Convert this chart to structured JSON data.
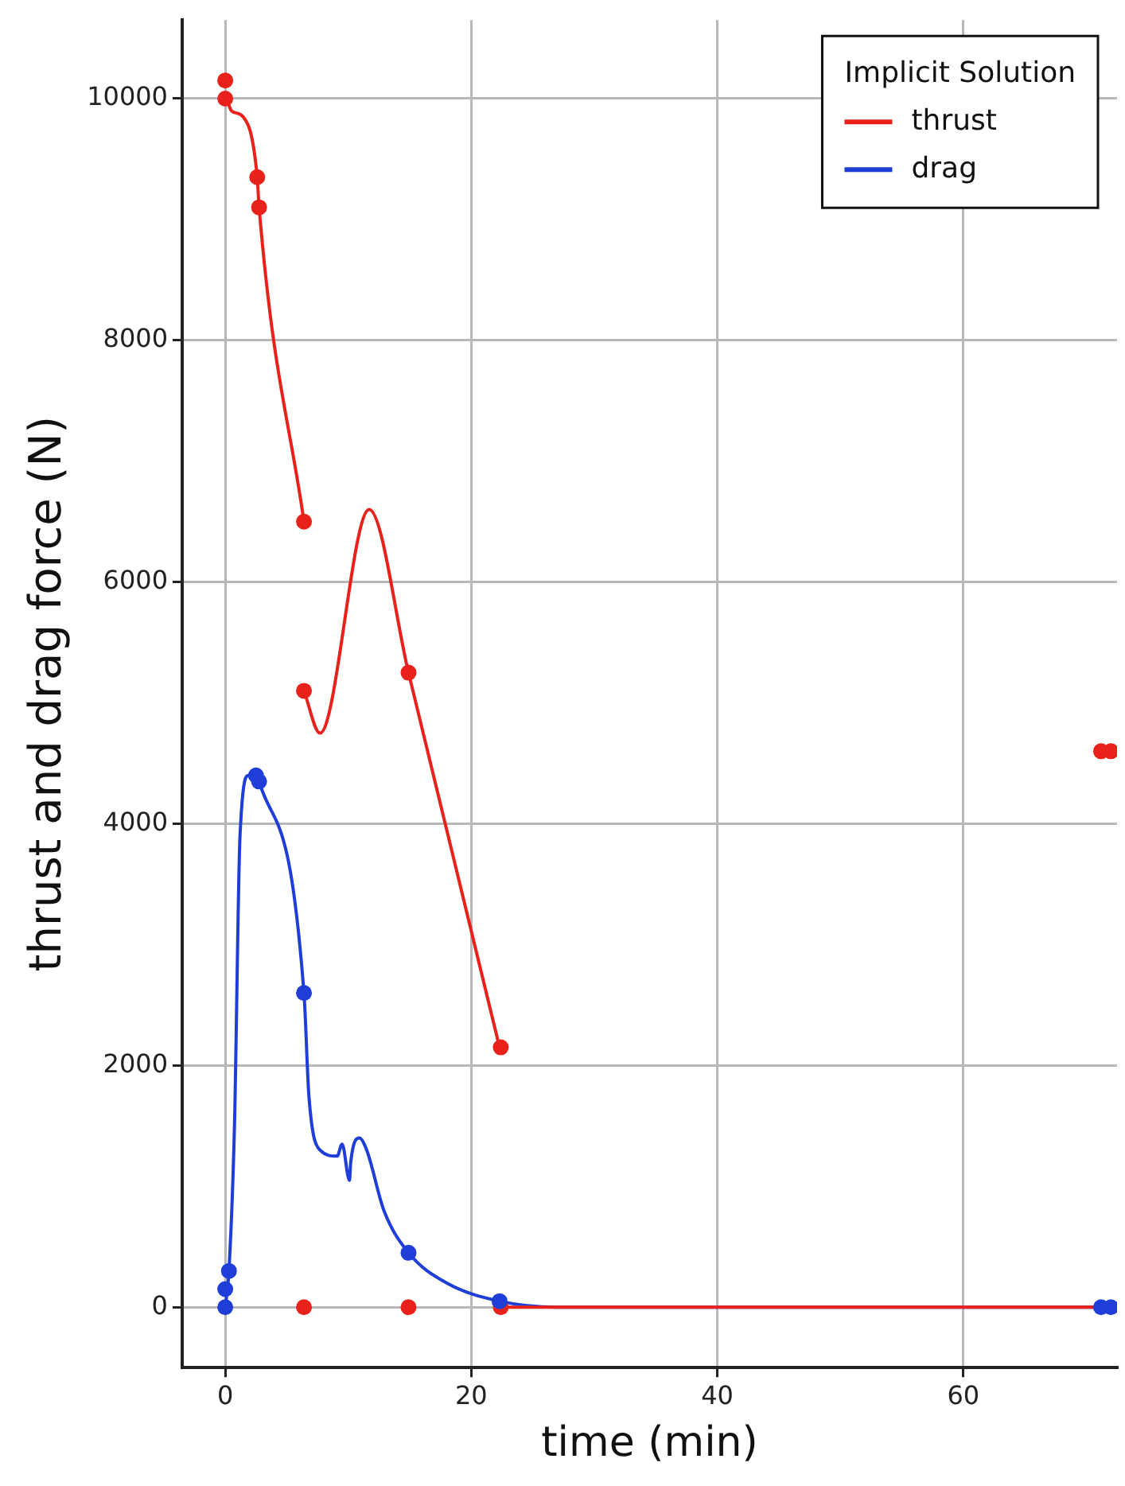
{
  "chart_data": {
    "type": "line",
    "xlabel": "time (min)",
    "ylabel": "thrust and drag force (N)",
    "legend_title": "Implicit Solution",
    "legend": "top right",
    "grid": true,
    "xlim": [
      -3.5,
      72.5
    ],
    "xticks": [
      0,
      20,
      40,
      60
    ],
    "ylim": [
      -500,
      10650
    ],
    "yticks": [
      0,
      2000,
      4000,
      6000,
      8000,
      10000
    ],
    "series": [
      {
        "name": "thrust",
        "type": "line",
        "marker": "none",
        "color": "#e8221b",
        "x": [
          0,
          0.5,
          1.45,
          2.6,
          2.75,
          6.4,
          null,
          6.4,
          7.7,
          11.7,
          14.9,
          22.3,
          null,
          22.4,
          72.5
        ],
        "values": [
          10050,
          9900,
          9850,
          9350,
          9100,
          6500,
          null,
          5100,
          4750,
          6600,
          5250,
          2150,
          null,
          0,
          0
        ]
      },
      {
        "name": "drag",
        "type": "line",
        "marker": "none",
        "color": "#1f3ed8",
        "x": [
          0,
          0.3,
          0.75,
          1.2,
          1.9,
          2.5,
          2.75,
          6.4,
          6.8,
          7.7,
          9.1,
          9.5,
          10.1,
          10.2,
          10.9,
          11.5,
          12.9,
          14.9,
          18,
          22.3,
          27,
          72.5
        ],
        "values": [
          0,
          300,
          1500,
          3900,
          4400,
          4400,
          4350,
          2600,
          1750,
          1300,
          1250,
          1350,
          1050,
          1200,
          1400,
          1300,
          800,
          450,
          200,
          50,
          0,
          0
        ]
      },
      {
        "type": "scatter",
        "marker": "circle",
        "color": "#e8221b",
        "x": [
          0,
          0,
          2.6,
          2.75,
          6.4,
          6.4,
          14.9,
          22.4,
          6.4,
          14.9,
          22.4,
          71.2,
          72
        ],
        "values": [
          10150,
          10000,
          9350,
          9100,
          6500,
          5100,
          5250,
          2150,
          0,
          0,
          0,
          4600,
          4600
        ]
      },
      {
        "type": "scatter",
        "marker": "circle",
        "color": "#1f3ed8",
        "x": [
          0,
          0,
          0.3,
          2.5,
          2.75,
          6.4,
          14.9,
          22.3,
          71.2,
          72
        ],
        "values": [
          0,
          150,
          300,
          4400,
          4350,
          2600,
          450,
          50,
          0,
          0
        ]
      }
    ]
  }
}
